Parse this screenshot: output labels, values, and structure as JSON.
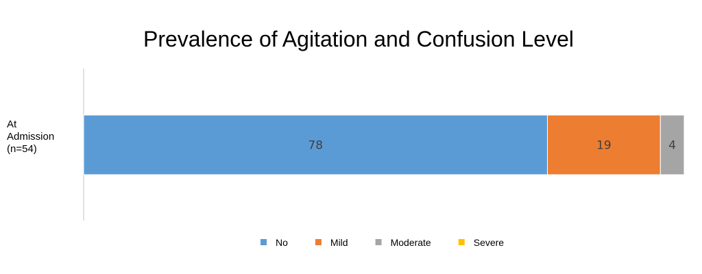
{
  "chart_data": {
    "type": "bar",
    "orientation": "horizontal",
    "stacked": true,
    "title": "Prevalence of Agitation and Confusion Level",
    "categories": [
      [
        "At",
        "Admission",
        "(n=54)"
      ]
    ],
    "series": [
      {
        "name": "No",
        "values": [
          78
        ],
        "color": "#5B9BD5",
        "label": "78"
      },
      {
        "name": "Mild",
        "values": [
          19
        ],
        "color": "#ED7D31",
        "label": "19"
      },
      {
        "name": "Moderate",
        "values": [
          4
        ],
        "color": "#A5A5A5",
        "label": "4"
      },
      {
        "name": "Severe",
        "values": [
          0
        ],
        "color": "#FFC000",
        "label": ""
      }
    ],
    "xlabel": "",
    "ylabel": "",
    "xlim": [
      0,
      101
    ],
    "grid": false,
    "legend_position": "bottom"
  }
}
